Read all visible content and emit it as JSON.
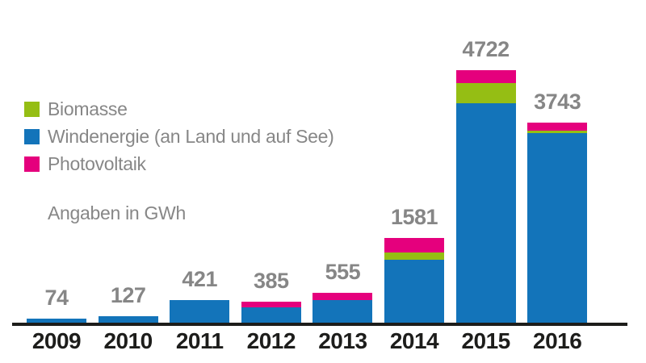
{
  "legend": {
    "items": [
      {
        "label": "Biomasse",
        "color": "#95be14"
      },
      {
        "label": "Windenergie (an Land und auf See)",
        "color": "#1374ba"
      },
      {
        "label": "Photovoltaik",
        "color": "#e5007d"
      }
    ]
  },
  "note": "Angaben in GWh",
  "colors": {
    "biomasse": "#95be14",
    "windenergie": "#1374ba",
    "photovoltaik": "#e5007d",
    "axis": "#1d1d1b",
    "value_label": "#868686",
    "year_label": "#1d1d1b"
  },
  "chart_data": {
    "type": "bar",
    "stacked": true,
    "title": "",
    "xlabel": "",
    "ylabel": "Angaben in GWh",
    "unit": "GWh",
    "grid": false,
    "legend_position": "upper left",
    "categories": [
      "2009",
      "2010",
      "2011",
      "2012",
      "2013",
      "2014",
      "2015",
      "2016"
    ],
    "totals": [
      74,
      127,
      421,
      385,
      555,
      1581,
      4722,
      3743
    ],
    "series": [
      {
        "name": "Windenergie (an Land und auf See)",
        "color": "#1374ba",
        "values": [
          74,
          127,
          421,
          280,
          420,
          1176,
          4107,
          3543
        ]
      },
      {
        "name": "Biomasse",
        "color": "#95be14",
        "values": [
          0,
          0,
          0,
          0,
          0,
          135,
          375,
          45
        ]
      },
      {
        "name": "Photovoltaik",
        "color": "#e5007d",
        "values": [
          0,
          0,
          0,
          105,
          135,
          270,
          240,
          155
        ]
      }
    ],
    "value_labels_shown": true,
    "ylim": [
      0,
      5000
    ]
  }
}
